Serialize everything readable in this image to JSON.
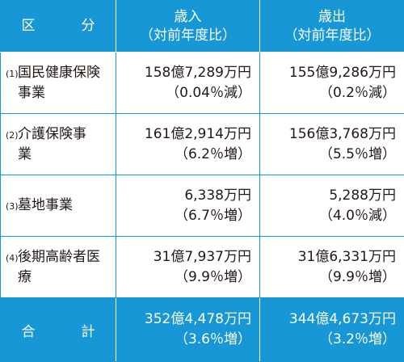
{
  "header": {
    "category": "区　分",
    "revenue_line1": "歳入",
    "revenue_line2": "（対前年度比）",
    "expenditure_line1": "歳出",
    "expenditure_line2": "（対前年度比）"
  },
  "rows": [
    {
      "num": "(1)",
      "label": "国民健康保険事業",
      "revenue": "158億7,289万円",
      "revenue_ratio": "（0.04％減）",
      "expenditure": "155億9,286万円",
      "expenditure_ratio": "（0.2％減）"
    },
    {
      "num": "(2)",
      "label": "介護保険事業",
      "revenue": "161億2,914万円",
      "revenue_ratio": "（6.2％増）",
      "expenditure": "156億3,768万円",
      "expenditure_ratio": "（5.5％増）"
    },
    {
      "num": "(3)",
      "label": "墓地事業",
      "revenue": "6,338万円",
      "revenue_ratio": "（6.7％増）",
      "expenditure": "5,288万円",
      "expenditure_ratio": "（4.0％減）"
    },
    {
      "num": "(4)",
      "label": "後期高齢者医療",
      "revenue": "31億7,937万円",
      "revenue_ratio": "（9.9％増）",
      "expenditure": "31億6,331万円",
      "expenditure_ratio": "（9.9％増）"
    }
  ],
  "total": {
    "label": "合　計",
    "revenue": "352億4,478万円",
    "revenue_ratio": "（3.6％増）",
    "expenditure": "344億4,673万円",
    "expenditure_ratio": "（3.2％増）"
  },
  "colors": {
    "accent": "#1797d6",
    "text": "#231815"
  }
}
